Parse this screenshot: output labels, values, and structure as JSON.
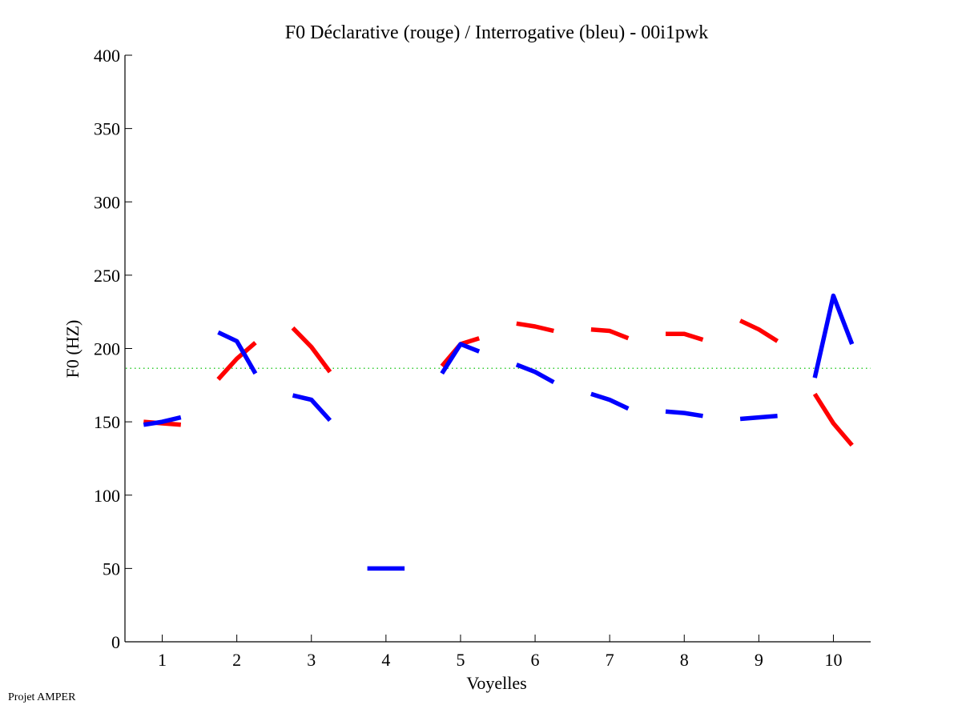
{
  "chart_data": {
    "type": "line",
    "title": "F0 Déclarative (rouge) / Interrogative (bleu) - 00i1pwk",
    "xlabel": "Voyelles",
    "ylabel": "F0 (HZ)",
    "xlim": [
      0.5,
      10.5
    ],
    "ylim": [
      0,
      400
    ],
    "xticks": [
      1,
      2,
      3,
      4,
      5,
      6,
      7,
      8,
      9,
      10
    ],
    "xtick_labels": [
      "1",
      "2",
      "3",
      "4",
      "5",
      "6",
      "7",
      "8",
      "9",
      "10"
    ],
    "yticks": [
      0,
      50,
      100,
      150,
      200,
      250,
      300,
      350,
      400
    ],
    "ytick_labels": [
      "0",
      "50",
      "100",
      "150",
      "200",
      "250",
      "300",
      "350",
      "400"
    ],
    "grid": false,
    "reference_line": {
      "y": 186.5,
      "color": "#33cc33",
      "style": "dotted"
    },
    "segment_offsets": [
      -0.25,
      0,
      0.25
    ],
    "series": [
      {
        "name": "Déclarative (rouge)",
        "color": "#ff0000",
        "segments": [
          {
            "x": 1,
            "values": [
              150,
              149,
              148
            ]
          },
          {
            "x": 2,
            "values": [
              179,
              193,
              204
            ]
          },
          {
            "x": 3,
            "values": [
              214,
              201,
              184
            ]
          },
          {
            "x": 5,
            "values": [
              188,
              203,
              207
            ]
          },
          {
            "x": 6,
            "values": [
              217,
              215,
              212
            ]
          },
          {
            "x": 7,
            "values": [
              213,
              212,
              207
            ]
          },
          {
            "x": 8,
            "values": [
              210,
              210,
              206
            ]
          },
          {
            "x": 9,
            "values": [
              219,
              213,
              205
            ]
          },
          {
            "x": 10,
            "values": [
              169,
              149,
              134
            ]
          }
        ]
      },
      {
        "name": "Interrogative (bleu)",
        "color": "#0000ff",
        "segments": [
          {
            "x": 1,
            "values": [
              148,
              150,
              153
            ]
          },
          {
            "x": 2,
            "values": [
              211,
              205,
              183
            ]
          },
          {
            "x": 3,
            "values": [
              168,
              165,
              151
            ]
          },
          {
            "x": 4,
            "values": [
              50,
              50,
              50
            ]
          },
          {
            "x": 5,
            "values": [
              183,
              203,
              198
            ]
          },
          {
            "x": 6,
            "values": [
              189,
              184,
              177
            ]
          },
          {
            "x": 7,
            "values": [
              169,
              165,
              159
            ]
          },
          {
            "x": 8,
            "values": [
              157,
              156,
              154
            ]
          },
          {
            "x": 9,
            "values": [
              152,
              153,
              154
            ]
          },
          {
            "x": 10,
            "values": [
              180,
              236,
              203
            ]
          }
        ]
      }
    ]
  },
  "footer": {
    "text": "Projet AMPER"
  }
}
